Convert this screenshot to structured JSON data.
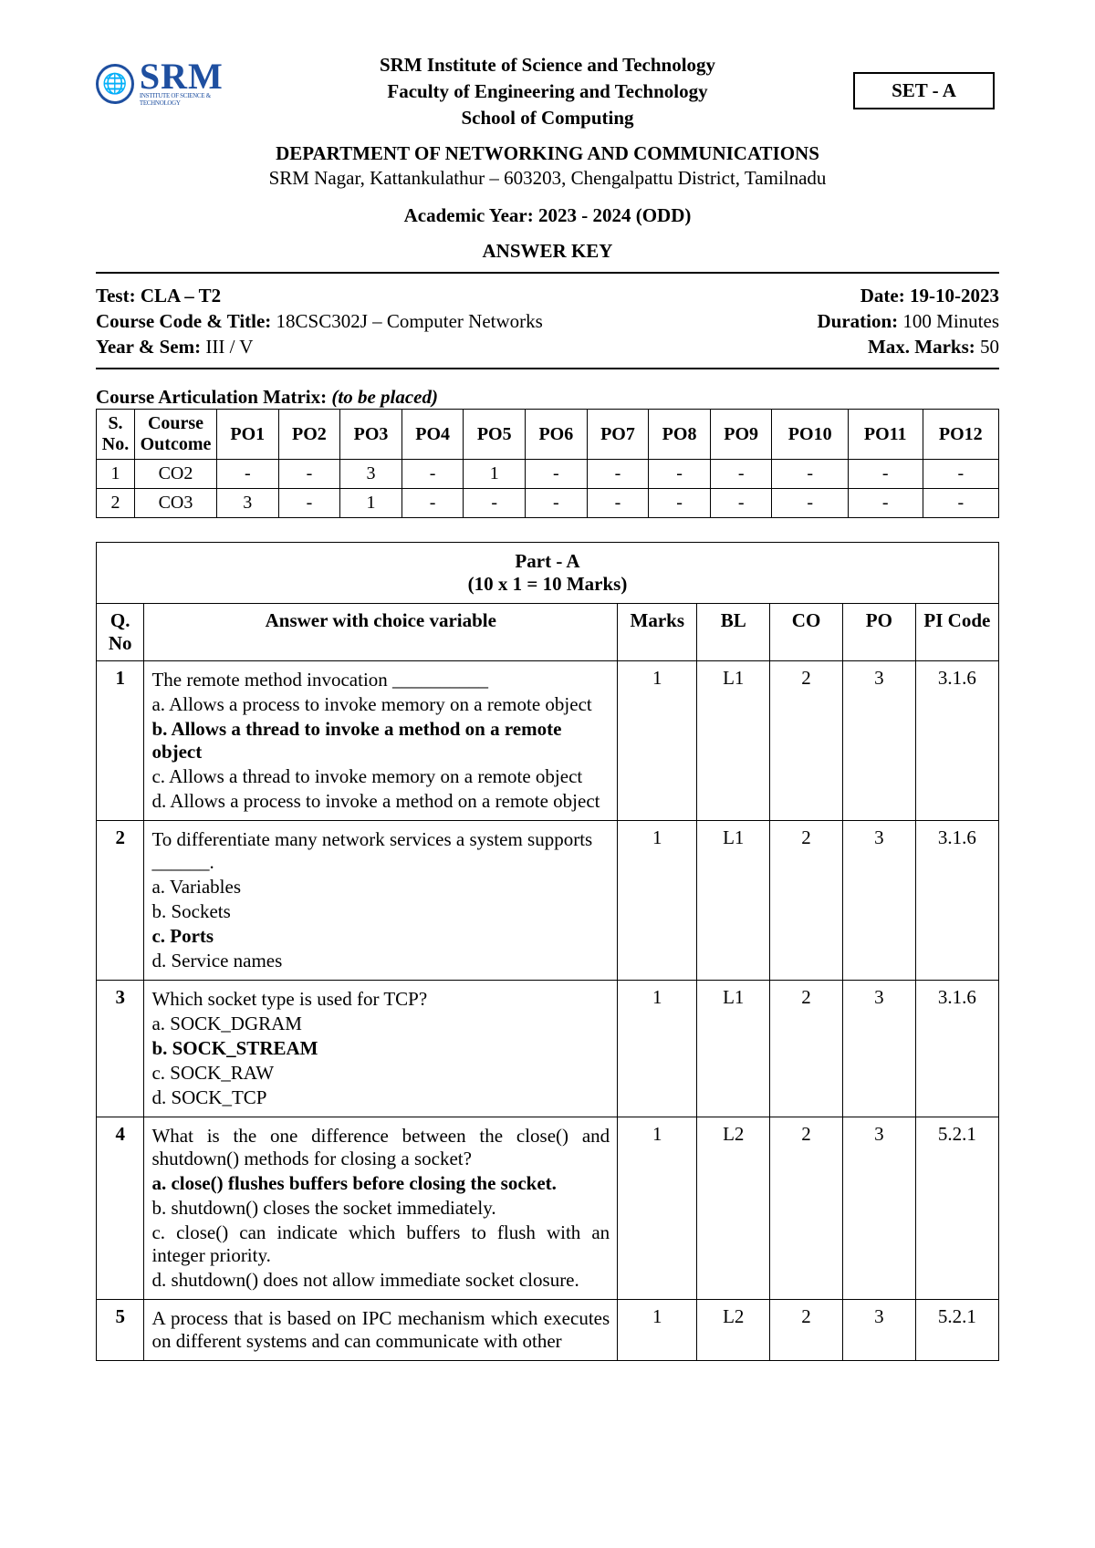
{
  "header": {
    "logo_text": "SRM",
    "logo_sub": "INSTITUTE OF SCIENCE & TECHNOLOGY",
    "line1": "SRM Institute of Science and Technology",
    "line2": "Faculty of Engineering and Technology",
    "line3": "School of Computing",
    "set_label": "SET - A",
    "dept": "DEPARTMENT OF NETWORKING AND COMMUNICATIONS",
    "address": "SRM Nagar, Kattankulathur – 603203, Chengalpattu District, Tamilnadu",
    "academic_year": "Academic Year:  2023 - 2024 (ODD)",
    "answer_key": "ANSWER KEY"
  },
  "info": {
    "test_label": "Test:",
    "test_value": " CLA – T2",
    "date_label": "Date:  ",
    "date_value": "19-10-2023",
    "course_label": "Course Code & Title: ",
    "course_value": "18CSC302J – Computer Networks",
    "duration_label": "Duration: ",
    "duration_value": "100 Minutes",
    "year_label": "Year & Sem: ",
    "year_value": "III / V",
    "marks_label": "Max. Marks: ",
    "marks_value": "50"
  },
  "cam": {
    "title_prefix": "Course Articulation Matrix: ",
    "title_italic": "(to be placed)",
    "headers": [
      "S. No.",
      "Course Outcome",
      "PO1",
      "PO2",
      "PO3",
      "PO4",
      "PO5",
      "PO6",
      "PO7",
      "PO8",
      "PO9",
      "PO10",
      "PO11",
      "PO12"
    ],
    "rows": [
      {
        "sno": "1",
        "co": "CO2",
        "po": [
          "-",
          "-",
          "3",
          "-",
          "1",
          "-",
          "-",
          "-",
          "-",
          "-",
          "-",
          "-"
        ]
      },
      {
        "sno": "2",
        "co": "CO3",
        "po": [
          "3",
          "-",
          "1",
          "-",
          "-",
          "-",
          "-",
          "-",
          "-",
          "-",
          "-",
          "-"
        ]
      }
    ]
  },
  "partA": {
    "title_line1": "Part - A",
    "title_line2": "(10 x 1   = 10 Marks)",
    "col_headers": {
      "qno": "Q. No",
      "ans": "Answer with choice variable",
      "marks": "Marks",
      "bl": "BL",
      "co": "CO",
      "po": "PO",
      "pi": "PI Code"
    },
    "questions": [
      {
        "no": "1",
        "marks": "1",
        "bl": "L1",
        "co": "2",
        "po": "3",
        "pi": "3.1.6",
        "stem": "The remote method invocation __________",
        "opts": [
          {
            "t": "a. Allows a process to invoke memory on a remote object",
            "bold": false
          },
          {
            "t": "b. Allows a thread to invoke a method on a remote object",
            "bold": true
          },
          {
            "t": "c. Allows a thread to invoke memory on a remote object",
            "bold": false
          },
          {
            "t": "d. Allows a process to invoke a method on a remote object",
            "bold": false
          }
        ]
      },
      {
        "no": "2",
        "marks": "1",
        "bl": "L1",
        "co": "2",
        "po": "3",
        "pi": "3.1.6",
        "stem": "To differentiate many network services a system supports ______.",
        "opts": [
          {
            "t": "a. Variables",
            "bold": false
          },
          {
            "t": "b. Sockets",
            "bold": false
          },
          {
            "t": "c. Ports",
            "bold": true
          },
          {
            "t": "d. Service names",
            "bold": false
          }
        ]
      },
      {
        "no": "3",
        "marks": "1",
        "bl": "L1",
        "co": "2",
        "po": "3",
        "pi": "3.1.6",
        "stem": "Which socket type is used for TCP?",
        "opts": [
          {
            "t": "a. SOCK_DGRAM",
            "bold": false
          },
          {
            "t": "b. SOCK_STREAM",
            "bold": true
          },
          {
            "t": "c. SOCK_RAW",
            "bold": false
          },
          {
            "t": "d. SOCK_TCP",
            "bold": false
          }
        ]
      },
      {
        "no": "4",
        "marks": "1",
        "bl": "L2",
        "co": "2",
        "po": "3",
        "pi": "5.2.1",
        "stem": "What is the one difference between the close() and shutdown() methods for closing a socket?",
        "opts": [
          {
            "t": "a. close() flushes buffers before closing the socket.",
            "bold": true
          },
          {
            "t": "b. shutdown() closes the socket immediately.",
            "bold": false
          },
          {
            "t": "c. close() can indicate which buffers to flush with an integer priority.",
            "bold": false
          },
          {
            "t": "d. shutdown() does not allow immediate socket closure.",
            "bold": false
          }
        ]
      },
      {
        "no": "5",
        "marks": "1",
        "bl": "L2",
        "co": "2",
        "po": "3",
        "pi": "5.2.1",
        "stem": "A process that is based on IPC mechanism which executes on different systems and can communicate with other",
        "opts": []
      }
    ]
  },
  "colors": {
    "brand": "#1e4fa0",
    "text": "#000000",
    "bg": "#ffffff",
    "border": "#000000"
  }
}
